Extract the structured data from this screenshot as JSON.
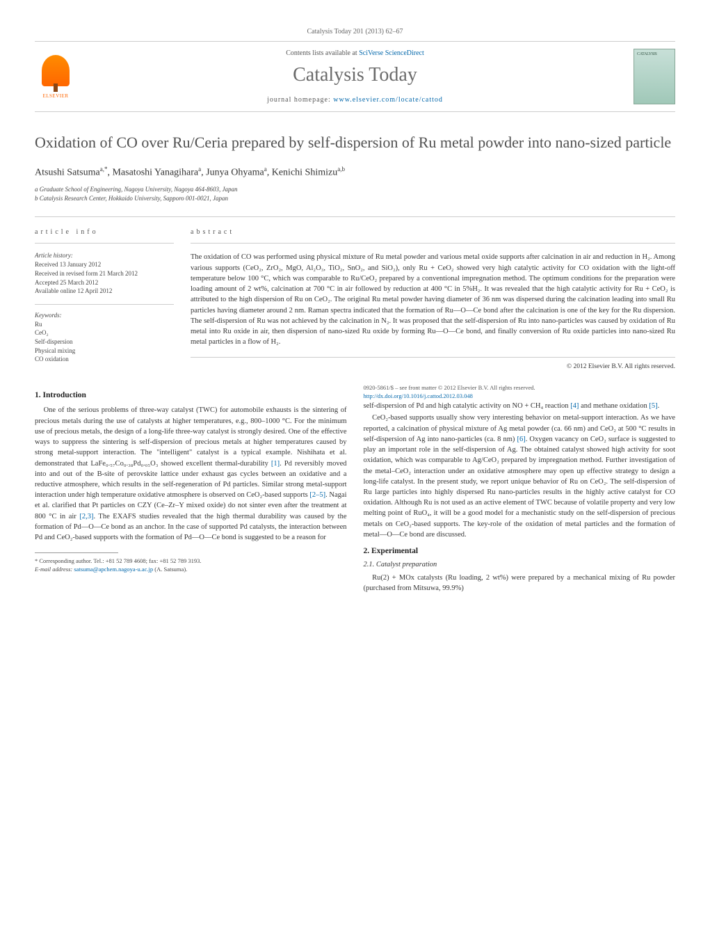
{
  "journal_ref": "Catalysis Today 201 (2013) 62–67",
  "masthead": {
    "contents_prefix": "Contents lists available at ",
    "contents_link_text": "SciVerse ScienceDirect",
    "journal_title": "Catalysis Today",
    "homepage_prefix": "journal homepage: ",
    "homepage_link_text": "www.elsevier.com/locate/cattod",
    "publisher_name": "ELSEVIER",
    "cover_brand": "CATALYSIS"
  },
  "article": {
    "title": "Oxidation of CO over Ru/Ceria prepared by self-dispersion of Ru metal powder into nano-sized particle",
    "authors_html": "Atsushi Satsuma<sup>a,*</sup>, Masatoshi Yanagihara<sup>a</sup>, Junya Ohyama<sup>a</sup>, Kenichi Shimizu<sup>a,b</sup>",
    "affiliations": [
      "a Graduate School of Engineering, Nagoya University, Nagoya 464-8603, Japan",
      "b Catalysis Research Center, Hokkaido University, Sapporo 001-0021, Japan"
    ]
  },
  "info": {
    "heading": "article info",
    "history_label": "Article history:",
    "history": [
      "Received 13 January 2012",
      "Received in revised form 21 March 2012",
      "Accepted 25 March 2012",
      "Available online 12 April 2012"
    ],
    "keywords_label": "Keywords:",
    "keywords": [
      "Ru",
      "CeO₂",
      "Self-dispersion",
      "Physical mixing",
      "CO oxidation"
    ]
  },
  "abstract": {
    "heading": "abstract",
    "text": "The oxidation of CO was performed using physical mixture of Ru metal powder and various metal oxide supports after calcination in air and reduction in H₂. Among various supports (CeO₂, ZrO₂, MgO, Al₂O₃, TiO₂, SnO₂, and SiO₂), only Ru + CeO₂ showed very high catalytic activity for CO oxidation with the light-off temperature below 100 °C, which was comparable to Ru/CeO₂ prepared by a conventional impregnation method. The optimum conditions for the preparation were loading amount of 2 wt%, calcination at 700 °C in air followed by reduction at 400 °C in 5%H₂. It was revealed that the high catalytic activity for Ru + CeO₂ is attributed to the high dispersion of Ru on CeO₂. The original Ru metal powder having diameter of 36 nm was dispersed during the calcination leading into small Ru particles having diameter around 2 nm. Raman spectra indicated that the formation of Ru—O—Ce bond after the calcination is one of the key for the Ru dispersion. The self-dispersion of Ru was not achieved by the calcination in N₂. It was proposed that the self-dispersion of Ru into nano-particles was caused by oxidation of Ru metal into Ru oxide in air, then dispersion of nano-sized Ru oxide by forming Ru—O—Ce bond, and finally conversion of Ru oxide particles into nano-sized Ru metal particles in a flow of H₂.",
    "copyright": "© 2012 Elsevier B.V. All rights reserved."
  },
  "sections": {
    "s1": {
      "heading": "1. Introduction",
      "p1": "One of the serious problems of three-way catalyst (TWC) for automobile exhausts is the sintering of precious metals during the use of catalysts at higher temperatures, e.g., 800–1000 °C. For the minimum use of precious metals, the design of a long-life three-way catalyst is strongly desired. One of the effective ways to suppress the sintering is self-dispersion of precious metals at higher temperatures caused by strong metal-support interaction. The \"intelligent\" catalyst is a typical example. Nishihata et al. demonstrated that LaFe₀.₅₇Co₀.₃₈Pd₀.₀₅O₃ showed excellent thermal-durability [1]. Pd reversibly moved into and out of the B-site of perovskite lattice under exhaust gas cycles between an oxidative and a reductive atmosphere, which results in the self-regeneration of Pd particles. Similar strong metal-support interaction under high temperature oxidative atmosphere is observed on CeO₂-based supports [2–5]. Nagai et al. clarified that Pt particles on CZY (Ce–Zr–Y mixed oxide) do not sinter even after the treatment at 800 °C in air [2,3]. The EXAFS studies revealed that the high thermal durability was caused by the formation of Pd—O—Ce bond as an anchor. In the case of supported Pd catalysts, the interaction between Pd and CeO₂-based supports with the formation of Pd—O—Ce bond is suggested to be a reason for",
      "p2": "self-dispersion of Pd and high catalytic activity on NO + CH₄ reaction [4] and methane oxidation [5].",
      "p3": "CeO₂-based supports usually show very interesting behavior on metal-support interaction. As we have reported, a calcination of physical mixture of Ag metal powder (ca. 66 nm) and CeO₂ at 500 °C results in self-dispersion of Ag into nano-particles (ca. 8 nm) [6]. Oxygen vacancy on CeO₂ surface is suggested to play an important role in the self-dispersion of Ag. The obtained catalyst showed high activity for soot oxidation, which was comparable to Ag/CeO₂ prepared by impregnation method. Further investigation of the metal–CeO₂ interaction under an oxidative atmosphere may open up effective strategy to design a long-life catalyst. In the present study, we report unique behavior of Ru on CeO₂. The self-dispersion of Ru large particles into highly dispersed Ru nano-particles results in the highly active catalyst for CO oxidation. Although Ru is not used as an active element of TWC because of volatile property and very low melting point of RuO₄, it will be a good model for a mechanistic study on the self-dispersion of precious metals on CeO₂-based supports. The key-role of the oxidation of metal particles and the formation of metal—O—Ce bond are discussed."
    },
    "s2": {
      "heading": "2. Experimental",
      "s2_1_heading": "2.1. Catalyst preparation",
      "s2_1_p1": "Ru(2) + MOx catalysts (Ru loading, 2 wt%) were prepared by a mechanical mixing of Ru powder (purchased from Mitsuwa, 99.9%)"
    }
  },
  "footnote": {
    "corr": "* Corresponding author. Tel.: +81 52 789 4608; fax: +81 52 789 3193.",
    "email_label": "E-mail address: ",
    "email": "satsuma@apchem.nagoya-u.ac.jp",
    "email_suffix": " (A. Satsuma)."
  },
  "footer": {
    "line1": "0920-5861/$ – see front matter © 2012 Elsevier B.V. All rights reserved.",
    "doi_url": "http://dx.doi.org/10.1016/j.cattod.2012.03.048"
  },
  "refs": {
    "r1": "[1]",
    "r2_5": "[2–5]",
    "r2_3": "[2,3]",
    "r4": "[4]",
    "r5": "[5]",
    "r6": "[6]"
  },
  "colors": {
    "link": "#0066aa",
    "text": "#333333",
    "heading_gray": "#505050",
    "rule": "#cccccc",
    "elsevier_orange": "#ff6600"
  },
  "typography": {
    "title_fontsize_pt": 16,
    "journal_title_fontsize_pt": 21,
    "body_fontsize_pt": 8,
    "abstract_fontsize_pt": 8,
    "info_fontsize_pt": 7
  }
}
